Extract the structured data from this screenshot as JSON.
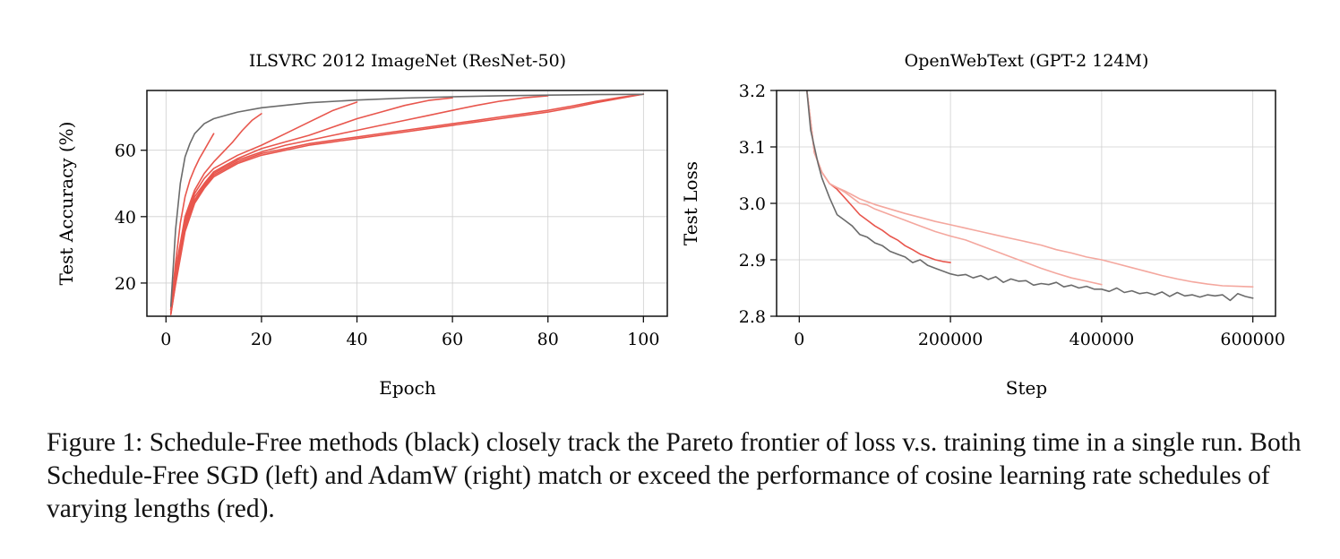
{
  "caption": "Figure 1: Schedule-Free methods (black) closely track the Pareto frontier of loss v.s. training time in a single run. Both Schedule-Free SGD (left) and AdamW (right) match or exceed the performance of cosine learning rate schedules of varying lengths (red).",
  "colors": {
    "schedule_free": "#6b6b6b",
    "cosine": "#e8564d",
    "cosine_light": "#f4a79e",
    "grid": "#cfcfcf",
    "axes": "#111111"
  },
  "chart_data": [
    {
      "type": "line",
      "title": "ILSVRC 2012 ImageNet (ResNet-50)",
      "xlabel": "Epoch",
      "ylabel": "Test Accuracy (%)",
      "xlim": [
        -4,
        105
      ],
      "ylim": [
        10,
        78
      ],
      "xticks": [
        0,
        20,
        40,
        60,
        80,
        100
      ],
      "yticks": [
        20,
        40,
        60
      ],
      "grid": true,
      "legend": "none",
      "series": [
        {
          "role": "schedule_free",
          "x": [
            1,
            2,
            3,
            4,
            5,
            6,
            8,
            10,
            15,
            20,
            30,
            40,
            50,
            60,
            70,
            80,
            90,
            100
          ],
          "y": [
            13,
            36,
            50,
            58,
            62,
            65,
            68,
            69.5,
            71.5,
            72.8,
            74.3,
            75.1,
            75.7,
            76.1,
            76.4,
            76.6,
            76.75,
            76.85
          ]
        },
        {
          "role": "cosine",
          "x": [
            1,
            2,
            3,
            4,
            5,
            6,
            7,
            8,
            9,
            10
          ],
          "y": [
            12,
            26,
            38,
            46,
            51,
            54.5,
            57.5,
            60,
            62.5,
            65
          ]
        },
        {
          "role": "cosine",
          "x": [
            1,
            2,
            4,
            6,
            8,
            10,
            12,
            14,
            16,
            18,
            20
          ],
          "y": [
            12,
            24,
            40,
            48,
            53,
            56.5,
            59.5,
            62.5,
            66,
            69,
            71
          ]
        },
        {
          "role": "cosine",
          "x": [
            1,
            2,
            4,
            6,
            8,
            10,
            15,
            20,
            25,
            30,
            35,
            40
          ],
          "y": [
            12,
            23,
            39,
            47,
            51.5,
            54.5,
            58.5,
            61.5,
            65,
            68.5,
            72,
            74.5
          ]
        },
        {
          "role": "cosine",
          "x": [
            1,
            2,
            4,
            6,
            8,
            10,
            15,
            20,
            25,
            30,
            35,
            40,
            45,
            50,
            55,
            60
          ],
          "y": [
            12,
            22,
            38,
            46,
            50,
            53.5,
            57.5,
            60.5,
            62.5,
            64.5,
            67,
            69.5,
            71.5,
            73.5,
            75,
            75.8
          ]
        },
        {
          "role": "cosine",
          "x": [
            1,
            2,
            4,
            6,
            8,
            10,
            15,
            20,
            25,
            30,
            35,
            40,
            45,
            50,
            55,
            60,
            65,
            70,
            75,
            80
          ],
          "y": [
            11,
            21,
            37,
            45,
            49.5,
            53,
            57,
            59.5,
            61.5,
            63,
            64.5,
            66,
            67.5,
            69,
            70.5,
            72,
            73.5,
            74.8,
            75.8,
            76.4
          ]
        },
        {
          "role": "cosine",
          "x": [
            1,
            2,
            4,
            6,
            8,
            10,
            15,
            20,
            25,
            30,
            35,
            40,
            45,
            50,
            55,
            60,
            65,
            70,
            75,
            80,
            85,
            90,
            95,
            100
          ],
          "y": [
            10.5,
            20,
            36,
            44.5,
            49,
            52.5,
            56.5,
            59,
            60.5,
            62,
            63,
            64,
            65,
            66,
            67,
            68,
            69,
            70,
            71,
            72,
            73.3,
            74.7,
            75.9,
            76.9
          ]
        },
        {
          "role": "cosine",
          "x": [
            1,
            2,
            4,
            6,
            8,
            10,
            15,
            20,
            25,
            30,
            35,
            40,
            45,
            50,
            55,
            60,
            65,
            70,
            75,
            80,
            85,
            90,
            95,
            100
          ],
          "y": [
            10.5,
            19.5,
            35.5,
            44,
            48.5,
            52,
            56,
            58.5,
            60,
            61.5,
            62.5,
            63.5,
            64.5,
            65.5,
            66.5,
            67.5,
            68.5,
            69.5,
            70.5,
            71.5,
            72.8,
            74.3,
            75.6,
            76.9
          ]
        }
      ]
    },
    {
      "type": "line",
      "title": "OpenWebText (GPT-2 124M)",
      "xlabel": "Step",
      "ylabel": "Test Loss",
      "xlim": [
        -30000,
        630000
      ],
      "ylim": [
        2.8,
        3.2
      ],
      "xticks": [
        0,
        200000,
        400000,
        600000
      ],
      "yticks": [
        2.8,
        2.9,
        3.0,
        3.1,
        3.2
      ],
      "ytick_labels": [
        "2.8",
        "2.9",
        "3.0",
        "3.1",
        "3.2"
      ],
      "grid": true,
      "legend": "none",
      "series": [
        {
          "role": "schedule_free",
          "x": [
            10000,
            15000,
            20000,
            25000,
            30000,
            40000,
            50000,
            60000,
            70000,
            80000,
            90000,
            100000,
            110000,
            120000,
            130000,
            140000,
            150000,
            160000,
            170000,
            180000,
            190000,
            200000,
            210000,
            220000,
            230000,
            240000,
            250000,
            260000,
            270000,
            280000,
            290000,
            300000,
            310000,
            320000,
            330000,
            340000,
            350000,
            360000,
            370000,
            380000,
            390000,
            400000,
            410000,
            420000,
            430000,
            440000,
            450000,
            460000,
            470000,
            480000,
            490000,
            500000,
            510000,
            520000,
            530000,
            540000,
            550000,
            560000,
            570000,
            580000,
            590000,
            600000
          ],
          "y": [
            3.2,
            3.13,
            3.1,
            3.07,
            3.045,
            3.01,
            2.98,
            2.97,
            2.96,
            2.945,
            2.94,
            2.93,
            2.925,
            2.915,
            2.91,
            2.905,
            2.895,
            2.9,
            2.89,
            2.885,
            2.88,
            2.875,
            2.872,
            2.874,
            2.868,
            2.872,
            2.865,
            2.87,
            2.86,
            2.866,
            2.862,
            2.863,
            2.855,
            2.858,
            2.856,
            2.86,
            2.852,
            2.855,
            2.85,
            2.853,
            2.848,
            2.848,
            2.844,
            2.85,
            2.842,
            2.845,
            2.84,
            2.842,
            2.838,
            2.843,
            2.835,
            2.842,
            2.836,
            2.838,
            2.834,
            2.838,
            2.836,
            2.838,
            2.828,
            2.84,
            2.835,
            2.832
          ]
        },
        {
          "role": "cosine",
          "x": [
            10000,
            20000,
            30000,
            40000,
            50000,
            60000,
            70000,
            80000,
            90000,
            100000,
            110000,
            120000,
            130000,
            140000,
            150000,
            160000,
            170000,
            180000,
            190000,
            200000
          ],
          "y": [
            3.2,
            3.09,
            3.055,
            3.035,
            3.025,
            3.01,
            2.995,
            2.98,
            2.97,
            2.96,
            2.952,
            2.942,
            2.935,
            2.925,
            2.918,
            2.91,
            2.905,
            2.9,
            2.897,
            2.895
          ]
        },
        {
          "role": "cosine",
          "x": [
            10000,
            20000,
            30000,
            40000,
            50000,
            60000,
            70000,
            80000,
            90000,
            100000,
            120000,
            140000,
            160000,
            180000,
            200000,
            220000,
            240000,
            260000,
            280000,
            300000,
            320000,
            340000,
            360000,
            380000,
            400000
          ],
          "y": [
            3.2,
            3.09,
            3.055,
            3.035,
            3.028,
            3.02,
            3.01,
            3.0,
            2.997,
            2.99,
            2.98,
            2.97,
            2.96,
            2.95,
            2.942,
            2.935,
            2.925,
            2.915,
            2.905,
            2.895,
            2.885,
            2.876,
            2.868,
            2.862,
            2.856
          ]
        },
        {
          "role": "cosine",
          "x": [
            10000,
            20000,
            30000,
            40000,
            50000,
            60000,
            70000,
            80000,
            90000,
            100000,
            120000,
            140000,
            160000,
            180000,
            200000,
            220000,
            240000,
            260000,
            280000,
            300000,
            320000,
            340000,
            360000,
            380000,
            400000,
            420000,
            440000,
            460000,
            480000,
            500000,
            520000,
            540000,
            560000,
            580000,
            600000
          ],
          "y": [
            3.2,
            3.09,
            3.055,
            3.035,
            3.028,
            3.022,
            3.015,
            3.008,
            3.003,
            2.998,
            2.99,
            2.982,
            2.975,
            2.968,
            2.962,
            2.956,
            2.95,
            2.944,
            2.938,
            2.932,
            2.926,
            2.918,
            2.912,
            2.905,
            2.9,
            2.893,
            2.886,
            2.879,
            2.872,
            2.866,
            2.861,
            2.857,
            2.854,
            2.853,
            2.852
          ]
        }
      ]
    }
  ]
}
